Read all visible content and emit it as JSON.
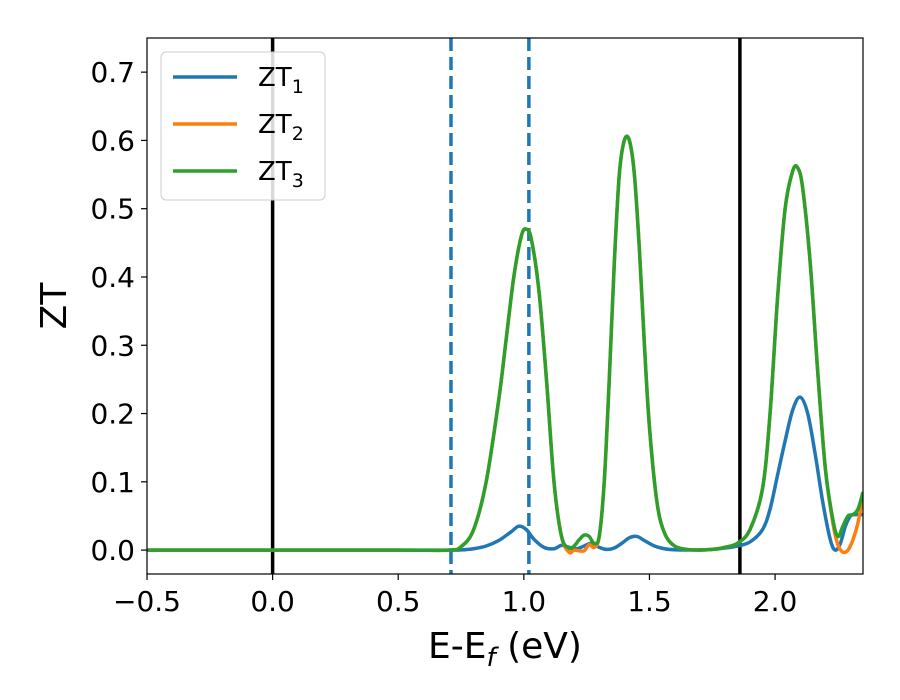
{
  "chart_data": {
    "type": "line",
    "xlabel_main": "E-E",
    "xlabel_sub": "f",
    "xlabel_unit": " (eV)",
    "ylabel": "ZT",
    "xlim": [
      -0.5,
      2.35
    ],
    "ylim": [
      -0.035,
      0.75
    ],
    "xticks": [
      -0.5,
      0.0,
      0.5,
      1.0,
      1.5,
      2.0
    ],
    "xtick_labels": [
      "−0.5",
      "0.0",
      "0.5",
      "1.0",
      "1.5",
      "2.0"
    ],
    "yticks": [
      0.0,
      0.1,
      0.2,
      0.3,
      0.4,
      0.5,
      0.6,
      0.7
    ],
    "ytick_labels": [
      "0.0",
      "0.1",
      "0.2",
      "0.3",
      "0.4",
      "0.5",
      "0.6",
      "0.7"
    ],
    "legend_position": "top-left",
    "vlines": [
      {
        "x": 0.0,
        "style": "solid",
        "color": "#000000"
      },
      {
        "x": 1.86,
        "style": "solid",
        "color": "#000000"
      },
      {
        "x": 0.71,
        "style": "dashed",
        "color": "#1f77b4"
      },
      {
        "x": 1.02,
        "style": "dashed",
        "color": "#1f77b4"
      }
    ],
    "series": [
      {
        "name": "ZT",
        "subscript": "1",
        "color": "#1f77b4",
        "x": [
          -0.5,
          0.0,
          0.5,
          0.7,
          0.75,
          0.8,
          0.85,
          0.9,
          0.95,
          0.98,
          1.01,
          1.04,
          1.08,
          1.12,
          1.15,
          1.18,
          1.21,
          1.24,
          1.27,
          1.3,
          1.33,
          1.36,
          1.39,
          1.42,
          1.45,
          1.48,
          1.52,
          1.56,
          1.6,
          1.65,
          1.7,
          1.75,
          1.8,
          1.85,
          1.9,
          1.95,
          1.98,
          2.01,
          2.04,
          2.07,
          2.1,
          2.13,
          2.16,
          2.19,
          2.22,
          2.24,
          2.26,
          2.28,
          2.3,
          2.32,
          2.35
        ],
        "y": [
          0.0,
          0.0,
          0.0,
          0.0,
          0.0003,
          0.002,
          0.006,
          0.014,
          0.027,
          0.035,
          0.03,
          0.016,
          0.004,
          0.002,
          0.007,
          0.004,
          0.002,
          0.006,
          0.01,
          0.004,
          0.001,
          0.003,
          0.01,
          0.018,
          0.02,
          0.014,
          0.006,
          0.002,
          0.0005,
          0.0002,
          0.0003,
          0.001,
          0.003,
          0.006,
          0.012,
          0.03,
          0.06,
          0.11,
          0.16,
          0.205,
          0.224,
          0.2,
          0.14,
          0.07,
          0.015,
          0.0,
          0.01,
          0.035,
          0.05,
          0.052,
          0.052
        ]
      },
      {
        "name": "ZT",
        "subscript": "2",
        "color": "#ff7f0e",
        "x": [
          -0.5,
          0.0,
          0.5,
          0.7,
          0.75,
          0.8,
          0.85,
          0.9,
          0.93,
          0.96,
          0.99,
          1.01,
          1.03,
          1.06,
          1.09,
          1.12,
          1.15,
          1.18,
          1.2,
          1.22,
          1.24,
          1.26,
          1.28,
          1.3,
          1.32,
          1.34,
          1.36,
          1.38,
          1.4,
          1.42,
          1.44,
          1.46,
          1.48,
          1.5,
          1.53,
          1.56,
          1.6,
          1.65,
          1.7,
          1.75,
          1.8,
          1.85,
          1.9,
          1.95,
          1.98,
          2.01,
          2.04,
          2.07,
          2.09,
          2.11,
          2.14,
          2.17,
          2.2,
          2.23,
          2.25,
          2.27,
          2.29,
          2.31,
          2.33,
          2.35
        ],
        "y": [
          0.0,
          0.0,
          0.0,
          0.0,
          0.005,
          0.03,
          0.1,
          0.22,
          0.31,
          0.4,
          0.46,
          0.47,
          0.455,
          0.38,
          0.25,
          0.1,
          0.02,
          -0.003,
          0.0,
          -0.001,
          -0.001,
          0.008,
          0.004,
          0.02,
          0.1,
          0.25,
          0.42,
          0.55,
          0.6,
          0.6,
          0.55,
          0.44,
          0.3,
          0.18,
          0.07,
          0.025,
          0.006,
          0.001,
          0.0,
          0.001,
          0.004,
          0.01,
          0.03,
          0.09,
          0.2,
          0.37,
          0.5,
          0.555,
          0.56,
          0.53,
          0.42,
          0.26,
          0.12,
          0.04,
          0.008,
          -0.003,
          0.0,
          0.015,
          0.04,
          0.08
        ]
      },
      {
        "name": "ZT",
        "subscript": "3",
        "color": "#2ca02c",
        "x": [
          -0.5,
          0.0,
          0.5,
          0.7,
          0.75,
          0.8,
          0.85,
          0.9,
          0.93,
          0.96,
          0.99,
          1.01,
          1.03,
          1.06,
          1.09,
          1.12,
          1.15,
          1.18,
          1.2,
          1.22,
          1.24,
          1.26,
          1.28,
          1.3,
          1.32,
          1.34,
          1.36,
          1.38,
          1.4,
          1.42,
          1.44,
          1.46,
          1.48,
          1.5,
          1.53,
          1.56,
          1.6,
          1.65,
          1.7,
          1.75,
          1.8,
          1.85,
          1.9,
          1.95,
          1.98,
          2.01,
          2.04,
          2.07,
          2.09,
          2.11,
          2.14,
          2.17,
          2.2,
          2.23,
          2.25,
          2.27,
          2.29,
          2.31,
          2.33,
          2.35
        ],
        "y": [
          0.0,
          0.0,
          0.0,
          0.0,
          0.005,
          0.03,
          0.1,
          0.22,
          0.31,
          0.4,
          0.46,
          0.47,
          0.455,
          0.38,
          0.25,
          0.1,
          0.02,
          0.003,
          0.006,
          0.015,
          0.022,
          0.02,
          0.01,
          0.02,
          0.1,
          0.25,
          0.42,
          0.55,
          0.6,
          0.6,
          0.55,
          0.44,
          0.3,
          0.18,
          0.07,
          0.025,
          0.006,
          0.001,
          0.0,
          0.001,
          0.004,
          0.01,
          0.03,
          0.09,
          0.2,
          0.37,
          0.5,
          0.555,
          0.56,
          0.53,
          0.42,
          0.26,
          0.12,
          0.045,
          0.02,
          0.035,
          0.05,
          0.052,
          0.06,
          0.085
        ]
      }
    ]
  }
}
